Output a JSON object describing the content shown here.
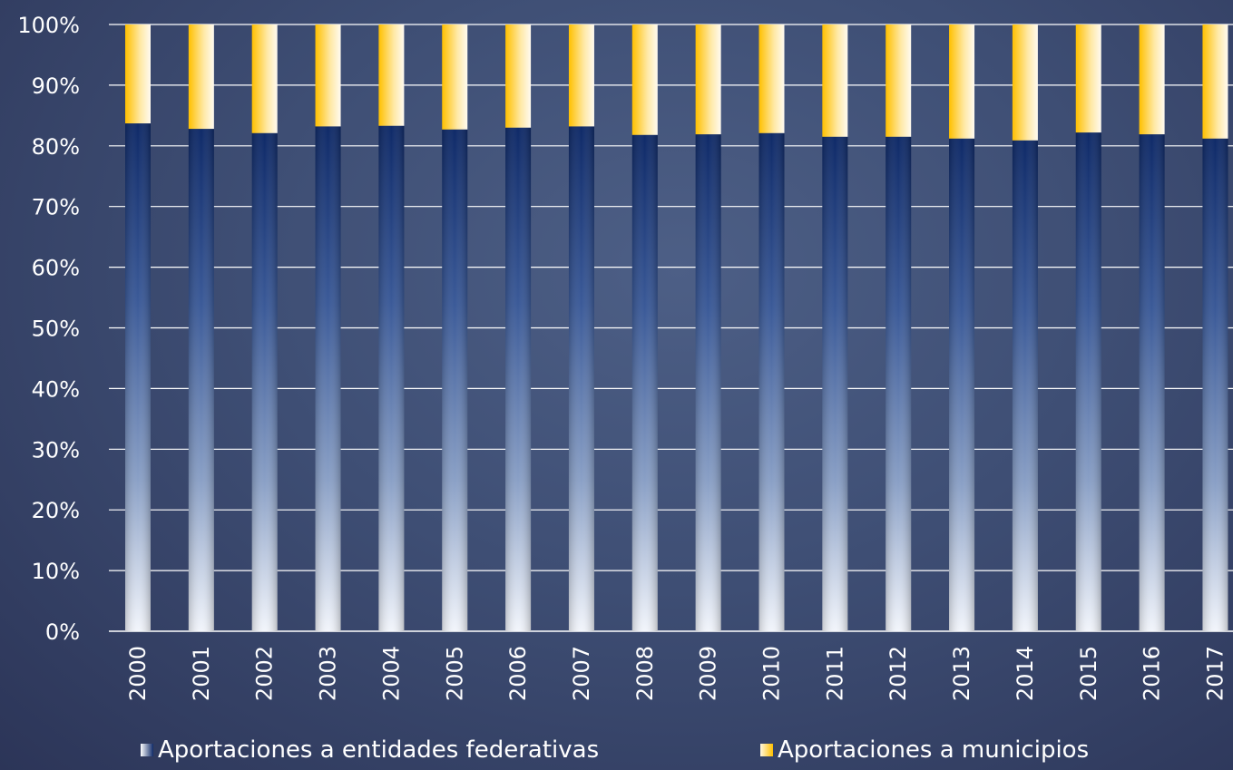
{
  "chart_data": {
    "type": "bar",
    "stacked": true,
    "categories": [
      "2000",
      "2001",
      "2002",
      "2003",
      "2004",
      "2005",
      "2006",
      "2007",
      "2008",
      "2009",
      "2010",
      "2011",
      "2012",
      "2013",
      "2014",
      "2015",
      "2016",
      "2017"
    ],
    "series": [
      {
        "name": "Aportaciones a entidades federativas",
        "values": [
          83.7,
          82.8,
          82.1,
          83.2,
          83.3,
          82.7,
          83.0,
          83.2,
          81.8,
          81.9,
          82.1,
          81.5,
          81.5,
          81.2,
          80.9,
          82.2,
          81.9,
          81.2
        ],
        "color": "#0f2a68"
      },
      {
        "name": "Aportaciones a municipios",
        "values": [
          16.3,
          17.2,
          17.9,
          16.8,
          16.7,
          17.3,
          17.0,
          16.8,
          18.2,
          18.1,
          17.9,
          18.5,
          18.5,
          18.8,
          19.1,
          17.8,
          18.1,
          18.8
        ],
        "color": "#ffc000"
      }
    ],
    "yticks": [
      "0%",
      "10%",
      "20%",
      "30%",
      "40%",
      "50%",
      "60%",
      "70%",
      "80%",
      "90%",
      "100%"
    ],
    "ylim": [
      0,
      100
    ],
    "grid": true,
    "legend_position": "bottom"
  }
}
